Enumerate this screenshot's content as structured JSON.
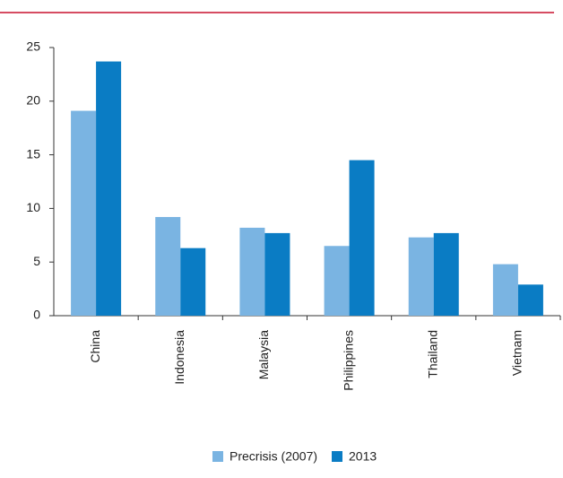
{
  "chart_data": {
    "type": "bar",
    "categories": [
      "China",
      "Indonesia",
      "Malaysia",
      "Philippines",
      "Thailand",
      "Vietnam"
    ],
    "series": [
      {
        "name": "Precrisis (2007)",
        "color": "#7ab4e2",
        "values": [
          19.1,
          9.2,
          8.2,
          6.5,
          7.3,
          4.8
        ]
      },
      {
        "name": "2013",
        "color": "#0a7cc4",
        "values": [
          23.7,
          6.3,
          7.7,
          14.5,
          7.7,
          2.9
        ]
      }
    ],
    "ylim": [
      0,
      25
    ],
    "yticks": [
      0,
      5,
      10,
      15,
      20,
      25
    ],
    "grid": false,
    "legend": "bottom"
  }
}
